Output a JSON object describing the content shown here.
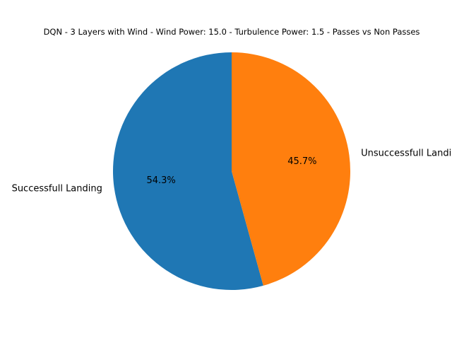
{
  "chart_data": {
    "type": "pie",
    "title": "DQN - 3 Layers with Wind - Wind Power: 15.0 - Turbulence Power: 1.5 - Passes vs Non Passes",
    "labels": [
      "Successfull Landing",
      "Unsuccessfull Landing"
    ],
    "percent_labels": [
      "54.3%",
      "45.7%"
    ],
    "values": [
      54.3,
      45.7
    ],
    "colors": [
      "#1f77b4",
      "#ff7f0e"
    ],
    "start_angle_deg": 90,
    "direction": "counterclockwise"
  }
}
